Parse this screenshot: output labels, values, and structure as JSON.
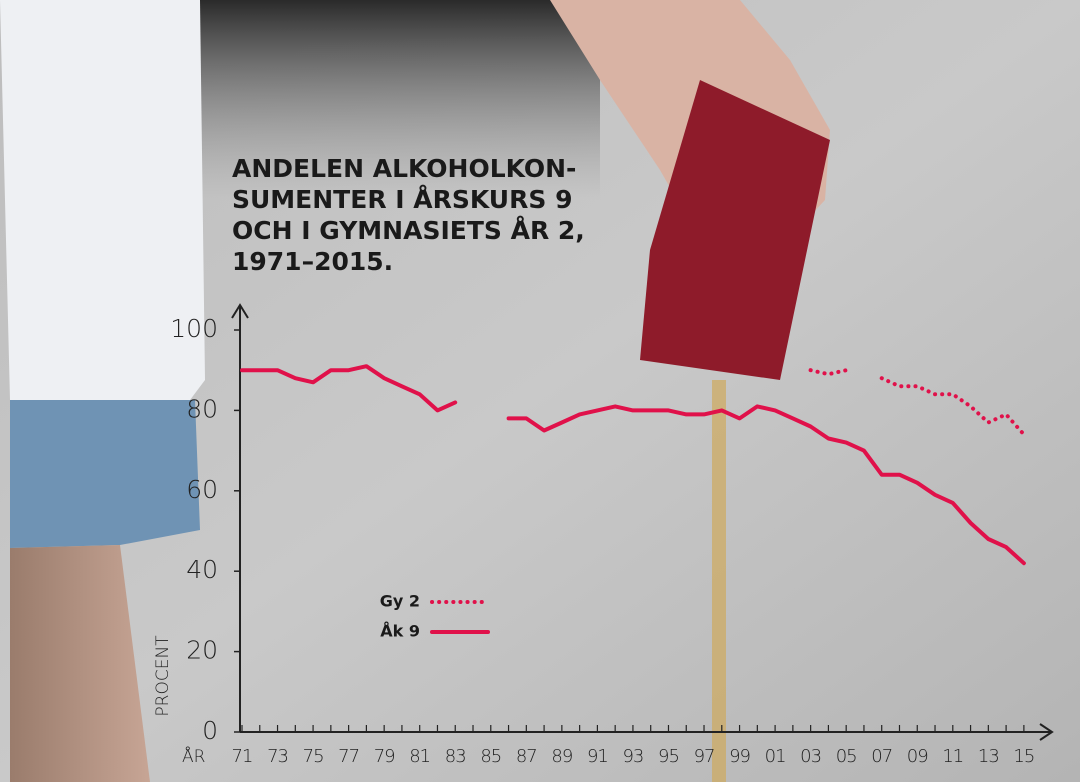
{
  "chart_data": {
    "type": "line",
    "title": [
      "ANDELEN ALKOHOLKON-",
      "SUMENTER I ÅRSKURS 9",
      "OCH I GYMNASIETS ÅR 2,",
      "1971–2015."
    ],
    "xlabel": "ÅR",
    "ylabel": "PROCENT",
    "categories": [
      "71",
      null,
      "73",
      null,
      "75",
      null,
      "77",
      null,
      "79",
      null,
      "81",
      null,
      "83",
      null,
      "85",
      null,
      "87",
      null,
      "89",
      null,
      "91",
      null,
      "93",
      null,
      "95",
      null,
      "97",
      null,
      "99",
      null,
      "01",
      null,
      "03",
      null,
      "05",
      null,
      "07",
      null,
      "09",
      null,
      "11",
      null,
      "13",
      null,
      "15"
    ],
    "series": [
      {
        "name": "Gy 2",
        "color": "#e0114a",
        "style": "dotted",
        "values": [
          null,
          null,
          null,
          null,
          null,
          null,
          null,
          null,
          null,
          null,
          null,
          null,
          null,
          null,
          null,
          null,
          null,
          null,
          null,
          null,
          null,
          null,
          null,
          null,
          null,
          null,
          null,
          null,
          null,
          null,
          null,
          null,
          90,
          89,
          90,
          null,
          88,
          86,
          86,
          84,
          84,
          81,
          77,
          79,
          74
        ]
      },
      {
        "name": "Åk 9",
        "color": "#e0114a",
        "style": "solid",
        "values": [
          90,
          90,
          90,
          88,
          87,
          90,
          90,
          91,
          88,
          86,
          84,
          80,
          82,
          null,
          null,
          78,
          78,
          75,
          77,
          79,
          80,
          81,
          80,
          80,
          80,
          79,
          79,
          80,
          78,
          81,
          80,
          78,
          76,
          73,
          72,
          70,
          64,
          64,
          62,
          59,
          57,
          52,
          48,
          46,
          42
        ]
      }
    ],
    "ylim": [
      0,
      100
    ],
    "yticks": [
      0,
      20,
      40,
      60,
      80,
      100
    ]
  }
}
